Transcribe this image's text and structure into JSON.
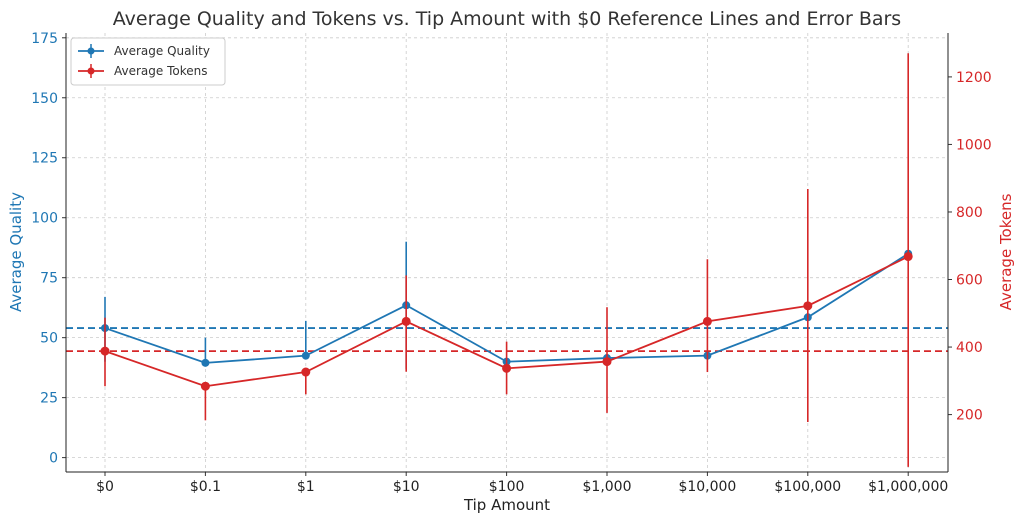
{
  "chart_data": {
    "type": "line",
    "title": "Average Quality and Tokens vs. Tip Amount with $0 Reference Lines and Error Bars",
    "xlabel": "Tip Amount",
    "categories": [
      "$0",
      "$0.1",
      "$1",
      "$10",
      "$100",
      "$1,000",
      "$10,000",
      "$100,000",
      "$1,000,000"
    ],
    "left_axis": {
      "label": "Average Quality",
      "ylim": [
        -6,
        177
      ],
      "ticks": [
        0,
        25,
        50,
        75,
        100,
        125,
        150,
        175
      ],
      "color": "#1f77b4"
    },
    "right_axis": {
      "label": "Average Tokens",
      "ylim": [
        30,
        1330
      ],
      "ticks": [
        200,
        400,
        600,
        800,
        1000,
        1200
      ],
      "color": "#d62728"
    },
    "series": [
      {
        "name": "Average Quality",
        "axis": "left",
        "color": "#1f77b4",
        "values": [
          54,
          39.5,
          42.5,
          63.5,
          40,
          41.5,
          42.5,
          58.5,
          85
        ],
        "err_low": [
          40,
          39.5,
          42.5,
          37,
          40,
          41.5,
          42.5,
          58.5,
          85
        ],
        "err_high": [
          67,
          50,
          57,
          90,
          40,
          41.5,
          42.5,
          58.5,
          85
        ],
        "reference": 54
      },
      {
        "name": "Average Tokens",
        "axis": "right",
        "color": "#d62728",
        "values": [
          388,
          284,
          326,
          476,
          337,
          357,
          476,
          522,
          668
        ],
        "err_low": [
          284,
          183,
          260,
          327,
          260,
          205,
          326,
          178,
          45
        ],
        "err_high": [
          487,
          284,
          326,
          612,
          416,
          518,
          660,
          868,
          1270
        ],
        "reference": 388
      }
    ],
    "legend": {
      "placement": "top-left",
      "entries": [
        "Average Quality",
        "Average Tokens"
      ]
    },
    "grid": true
  }
}
